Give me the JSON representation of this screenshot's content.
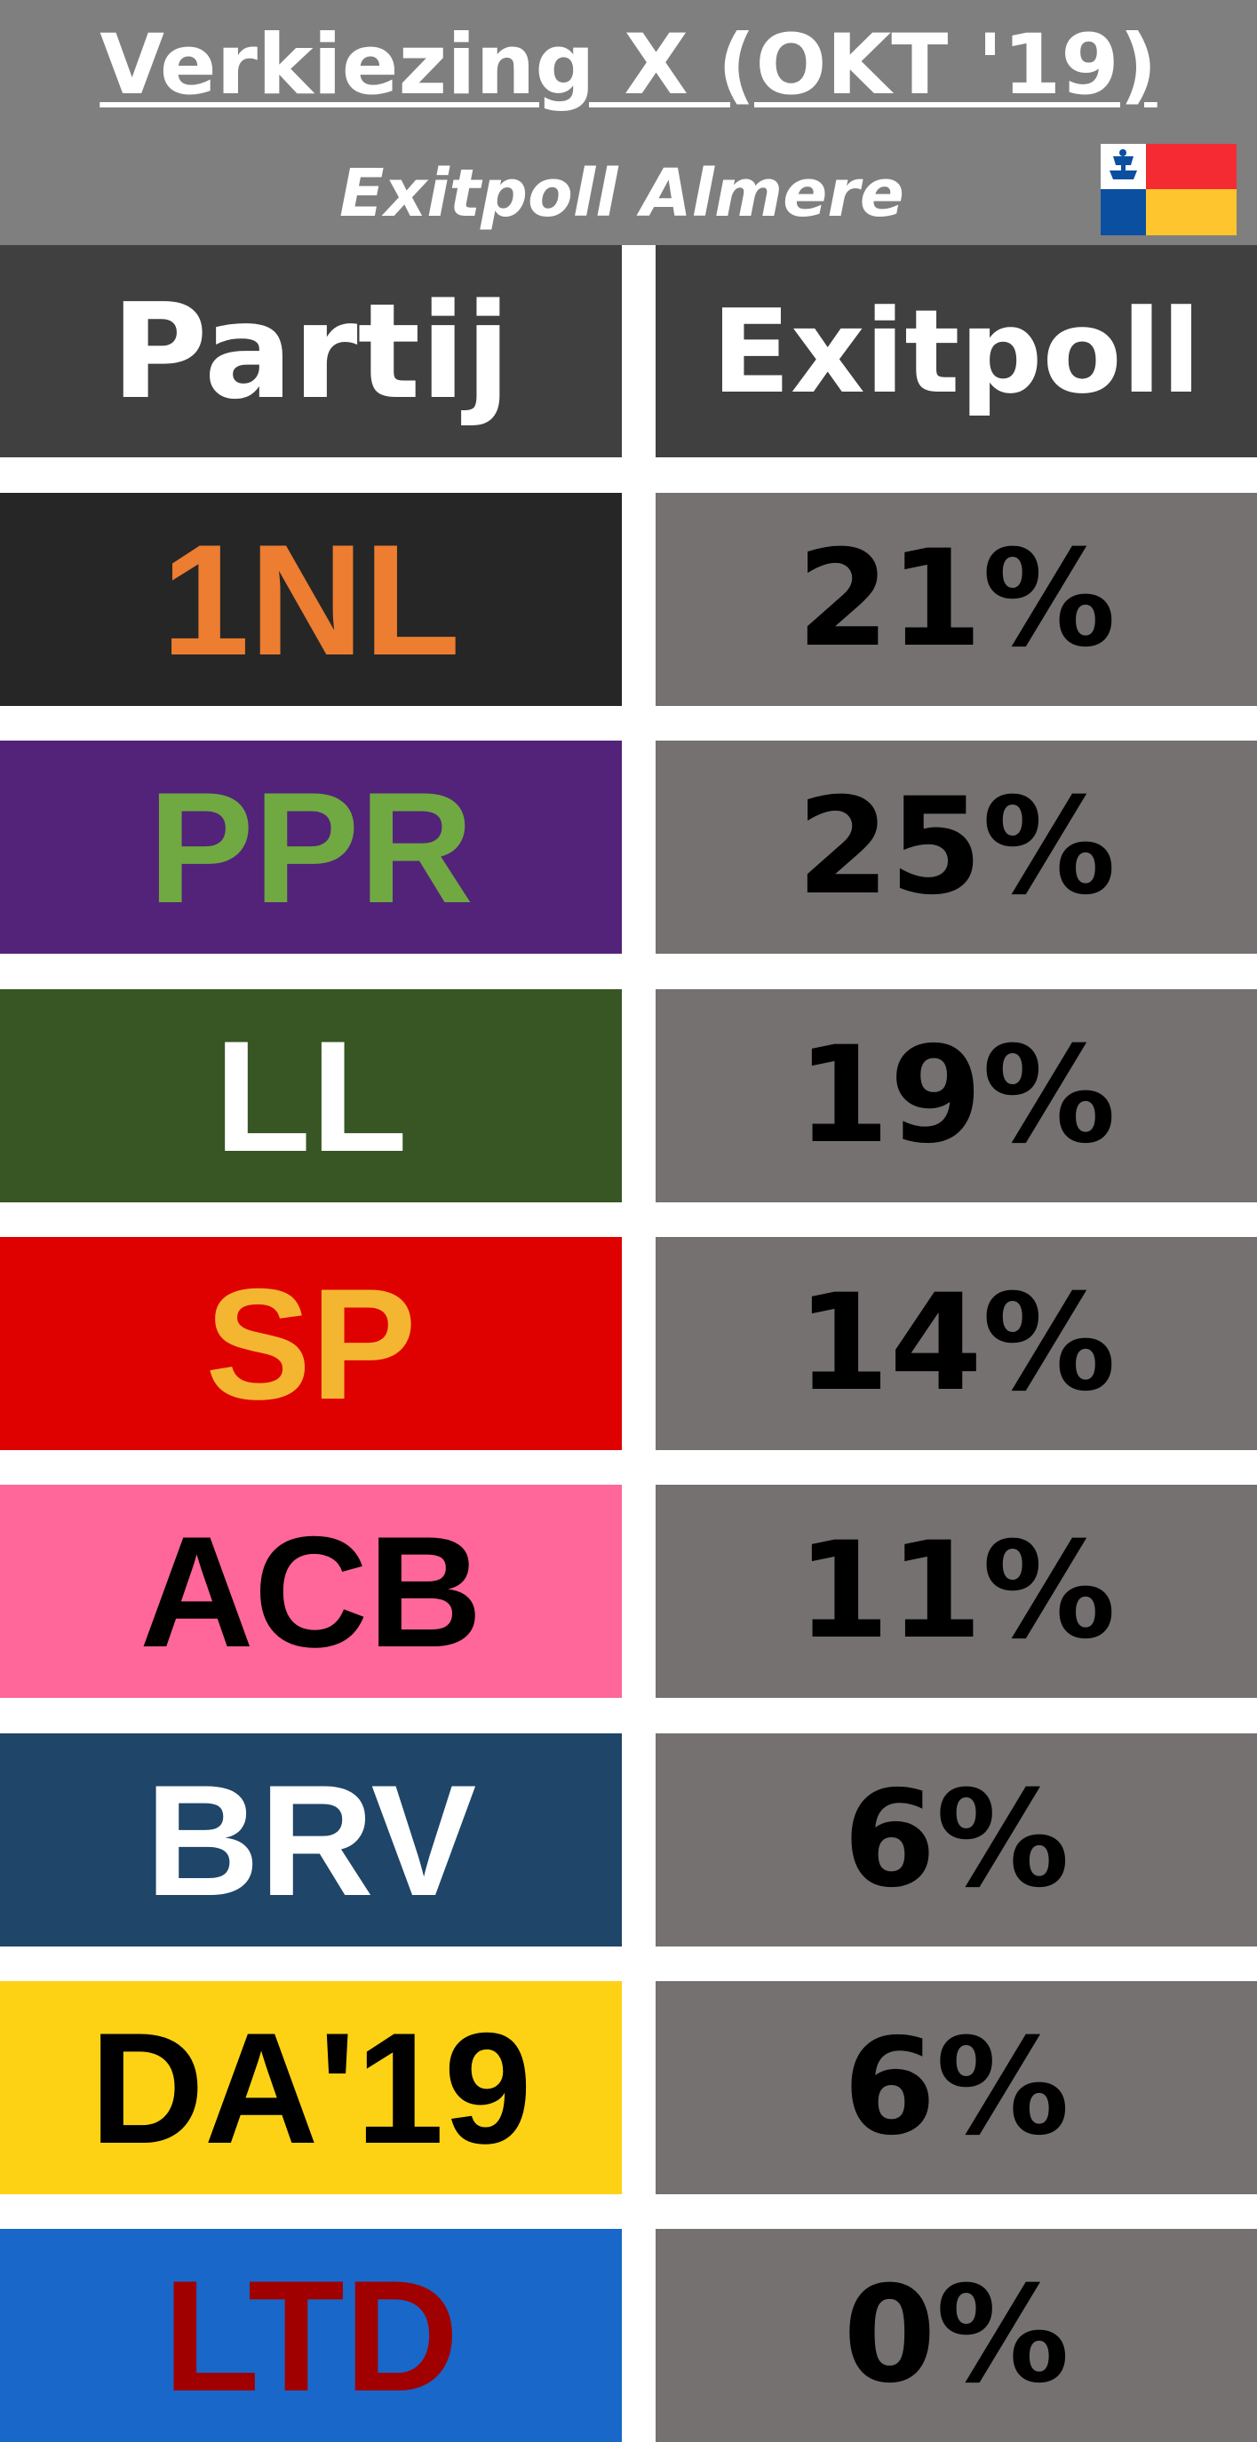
{
  "header": {
    "title": "Verkiezing X (OKT '19)",
    "subtitle": "Exitpoll Almere",
    "flag_icon": "almere-flag-icon",
    "background": "#7f7f7f"
  },
  "columns": {
    "party": "Partij",
    "exitpoll": "Exitpoll"
  },
  "chart_data": {
    "type": "table",
    "title": "Verkiezing X (OKT '19)",
    "subtitle": "Exitpoll Almere",
    "columns": [
      "Partij",
      "Exitpoll"
    ],
    "rows": [
      {
        "party": "1NL",
        "value": 21,
        "label": "21%",
        "bg": "#262626",
        "fg": "#ed7d31"
      },
      {
        "party": "PPR",
        "value": 25,
        "label": "25%",
        "bg": "#522378",
        "fg": "#70a842"
      },
      {
        "party": "LL",
        "value": 19,
        "label": "19%",
        "bg": "#375623",
        "fg": "#ffffff"
      },
      {
        "party": "SP",
        "value": 14,
        "label": "14%",
        "bg": "#df0000",
        "fg": "#f4b531"
      },
      {
        "party": "ACB",
        "value": 11,
        "label": "11%",
        "bg": "#ff6699",
        "fg": "#000000"
      },
      {
        "party": "BRV",
        "value": 6,
        "label": "6%",
        "bg": "#1f4568",
        "fg": "#ffffff"
      },
      {
        "party": "DA'19",
        "value": 6,
        "label": "6%",
        "bg": "#fdd215",
        "fg": "#000000"
      },
      {
        "party": "LTD",
        "value": 0,
        "label": "0%",
        "bg": "#1967c8",
        "fg": "#a10000"
      }
    ]
  }
}
